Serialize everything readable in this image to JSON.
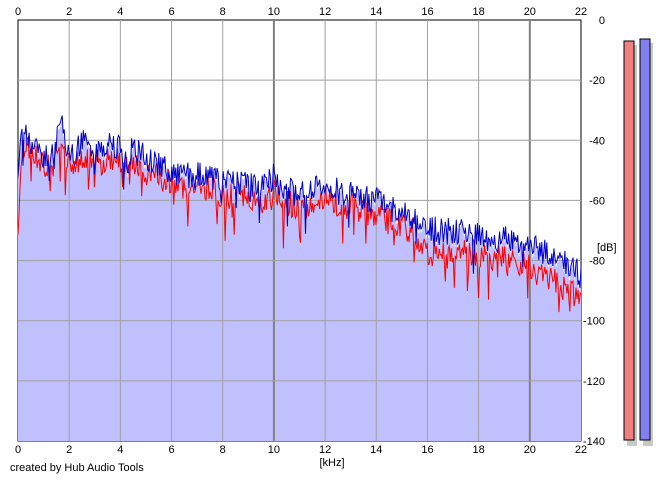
{
  "credit": "created by Hub Audio Tools",
  "chart_data": {
    "type": "area",
    "xlabel": "[kHz]",
    "ylabel": "[dB]",
    "xlim": [
      0,
      22
    ],
    "ylim": [
      -140,
      0
    ],
    "xticks": [
      0,
      2,
      4,
      6,
      8,
      10,
      12,
      14,
      16,
      18,
      20,
      22
    ],
    "yticks": [
      0,
      -20,
      -40,
      -60,
      -80,
      -100,
      -120,
      -140
    ],
    "xtick_labels": [
      "0",
      "2",
      "4",
      "6",
      "8",
      "10",
      "12",
      "14",
      "16",
      "18",
      "20",
      "22"
    ],
    "ytick_labels": [
      "0",
      "-20",
      "-40",
      "-60",
      "-80",
      "-100",
      "-120",
      "-140"
    ],
    "grid": true,
    "fill_color": "#c0c0ff",
    "background": "#ffffff",
    "series": [
      {
        "color": "#ff0000",
        "x": [
          0,
          0.1,
          0.2,
          0.3,
          0.5,
          0.8,
          1.0,
          1.3,
          1.6,
          1.7,
          1.9,
          2.2,
          2.5,
          2.8,
          3.0,
          3.3,
          3.6,
          3.9,
          4.2,
          4.5,
          5.0,
          5.5,
          6.0,
          6.5,
          7.0,
          7.5,
          8.0,
          8.5,
          9.0,
          9.5,
          10.0,
          10.5,
          11.0,
          11.5,
          12.0,
          12.5,
          13.0,
          13.5,
          14.0,
          14.5,
          15.0,
          15.5,
          16.0,
          16.5,
          17.0,
          17.5,
          18.0,
          18.5,
          19.0,
          19.5,
          20.0,
          20.5,
          21.0,
          21.5,
          22.0
        ],
        "values": [
          -68,
          -50,
          -44,
          -41,
          -45,
          -46,
          -48,
          -47,
          -43,
          -40,
          -47,
          -49,
          -46,
          -45,
          -48,
          -47,
          -46,
          -47,
          -49,
          -48,
          -51,
          -52,
          -54,
          -56,
          -55,
          -56,
          -58,
          -58,
          -59,
          -60,
          -57,
          -61,
          -62,
          -61,
          -59,
          -61,
          -62,
          -63,
          -64,
          -67,
          -68,
          -71,
          -77,
          -75,
          -79,
          -77,
          -78,
          -80,
          -79,
          -81,
          -82,
          -84,
          -87,
          -90,
          -93
        ]
      },
      {
        "color": "#0000cc",
        "x": [
          0,
          0.1,
          0.2,
          0.3,
          0.5,
          0.8,
          1.0,
          1.3,
          1.6,
          1.7,
          1.9,
          2.2,
          2.5,
          2.8,
          3.0,
          3.3,
          3.6,
          3.9,
          4.2,
          4.5,
          5.0,
          5.5,
          6.0,
          6.5,
          7.0,
          7.5,
          8.0,
          8.5,
          9.0,
          9.5,
          10.0,
          10.5,
          11.0,
          11.5,
          12.0,
          12.5,
          13.0,
          13.5,
          14.0,
          14.5,
          15.0,
          15.5,
          16.0,
          16.5,
          17.0,
          17.5,
          18.0,
          18.5,
          19.0,
          19.5,
          20.0,
          20.5,
          21.0,
          21.5,
          22.0
        ],
        "values": [
          -52,
          -40,
          -36,
          -39,
          -42,
          -43,
          -45,
          -44,
          -38,
          -33,
          -42,
          -44,
          -41,
          -40,
          -43,
          -42,
          -40,
          -42,
          -45,
          -43,
          -46,
          -48,
          -50,
          -52,
          -51,
          -52,
          -54,
          -53,
          -55,
          -56,
          -52,
          -56,
          -58,
          -57,
          -55,
          -57,
          -58,
          -59,
          -60,
          -63,
          -64,
          -66,
          -70,
          -69,
          -71,
          -70,
          -72,
          -73,
          -73,
          -74,
          -75,
          -77,
          -79,
          -81,
          -85
        ]
      }
    ],
    "level_meters": [
      {
        "color": "#f08080"
      },
      {
        "color": "#8080f0"
      }
    ]
  }
}
